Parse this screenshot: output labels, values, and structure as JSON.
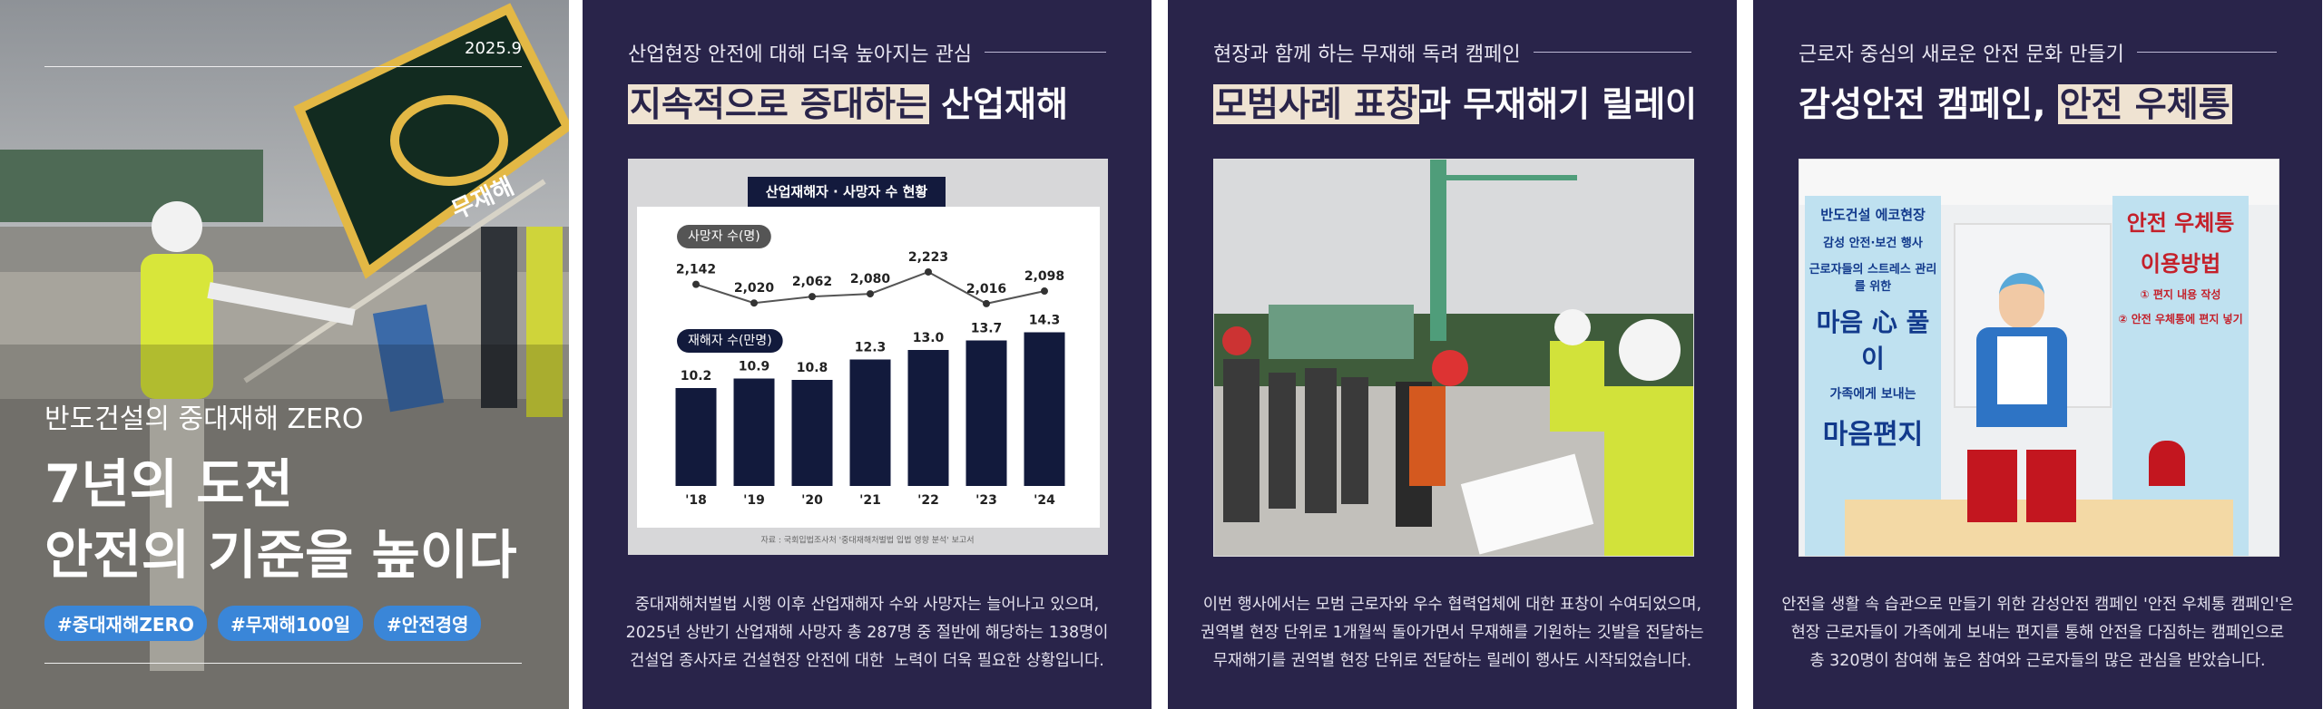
{
  "cover": {
    "date": "2025.9",
    "flag_text": "무재해",
    "subtitle": "반도건설의 중대재해 ZERO",
    "title_lines": [
      "7년의 도전",
      "안전의 기준을 높이다"
    ],
    "hashtags": [
      "#중대재해ZERO",
      "#무재해100일",
      "#안전경영"
    ]
  },
  "panels": [
    {
      "eyebrow": "산업현장 안전에 대해 더욱 높아지는 관심",
      "title_parts": [
        {
          "text": "지속적으로 증대하는",
          "highlight": true
        },
        {
          "text": " 산업재해",
          "highlight": false
        }
      ],
      "body_lines": [
        "중대재해처벌법 시행 이후 산업재해자 수와 사망자는 늘어나고 있으며,",
        "2025년 상반기 산업재해 사망자 총 287명 중 절반에 해당하는 138명이",
        "건설업 종사자로 건설현장 안전에 대한  노력이 더욱 필요한 상황입니다."
      ]
    },
    {
      "eyebrow": "현장과 함께 하는 무재해 독려 캠페인",
      "title_parts": [
        {
          "text": "모범사례 표창",
          "highlight": true
        },
        {
          "text": "과 무재해기 릴레이",
          "highlight": false
        }
      ],
      "body_lines": [
        "이번 행사에서는 모범 근로자와 우수 협력업체에 대한 표창이 수여되었으며,",
        "권역별 현장 단위로 1개월씩 돌아가면서 무재해를 기원하는 깃발을 전달하는",
        "무재해기를 권역별 현장 단위로 전달하는 릴레이 행사도 시작되었습니다."
      ]
    },
    {
      "eyebrow": "근로자 중심의 새로운 안전 문화 만들기",
      "title_parts": [
        {
          "text": "감성안전 캠페인, ",
          "highlight": false
        },
        {
          "text": "안전 우체통",
          "highlight": true
        }
      ],
      "body_lines": [
        "안전을 생활 속 습관으로 만들기 위한 감성안전 캠페인 '안전 우체통 캠페인'은",
        "현장 근로자들이 가족에게 보내는 편지를 통해 안전을 다짐하는 캠페인으로",
        "총 320명이 참여해 높은 참여와 근로자들의 많은 관심을 받았습니다."
      ]
    }
  ],
  "chart": {
    "type": "bar",
    "title": "산업재해자 · 사망자 수 현황",
    "categories": [
      "'18",
      "'19",
      "'20",
      "'21",
      "'22",
      "'23",
      "'24"
    ],
    "line_series": {
      "name": "사망자 수(명)",
      "color": "#555555",
      "values": [
        2142,
        2020,
        2062,
        2080,
        2223,
        2016,
        2098
      ],
      "value_labels": [
        "2,142",
        "2,020",
        "2,062",
        "2,080",
        "2,223",
        "2,016",
        "2,098"
      ],
      "ylim": [
        1900,
        2350
      ]
    },
    "bar_series": {
      "name": "재해자 수(만명)",
      "color": "#121a3c",
      "values": [
        10.2,
        10.9,
        10.8,
        12.3,
        13.0,
        13.7,
        14.3
      ],
      "value_labels": [
        "10.2",
        "10.9",
        "10.8",
        "12.3",
        "13.0",
        "13.7",
        "14.3"
      ],
      "ylim": [
        3,
        15
      ]
    },
    "source": "자료 : 국회입법조사처 '중대재해처벌법 입법 영향 분석' 보고서"
  },
  "poster": {
    "left_banner": [
      "반도건설 에코현장",
      "감성 안전·보건 행사",
      "근로자들의 스트레스 관리를 위한",
      "마음 心 풀이",
      "가족에게 보내는",
      "마음편지"
    ],
    "right_banner": [
      "안전 우체통",
      "이용방법",
      "① 편지 내용 작성",
      "② 안전 우체통에 편지 넣기"
    ]
  }
}
